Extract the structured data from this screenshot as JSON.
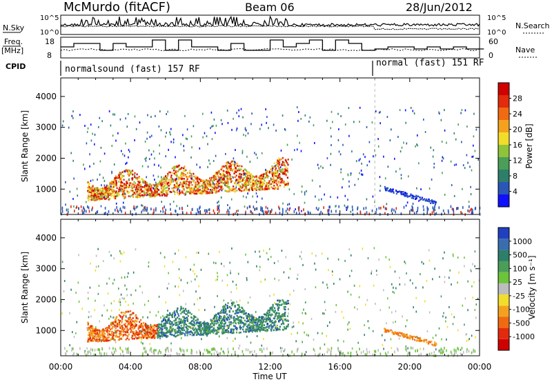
{
  "header": {
    "station": "McMurdo (fitACF)",
    "beam": "Beam 06",
    "date": "28/Jun/2012"
  },
  "panels": {
    "noise": {
      "left_label": "N.Sky",
      "right_label": "N.Search",
      "tick_top": "10^5",
      "tick_bottom": "10^0"
    },
    "freq": {
      "left_label_1": "Freq.",
      "left_label_2": "[MHz]",
      "left_ticks": [
        "18",
        "8"
      ],
      "right_label": "Nave",
      "right_ticks": [
        "60",
        "0"
      ]
    },
    "cpid": {
      "label": "CPID",
      "modes": [
        "normalsound (fast) 157 RF",
        "normal (fast) 151 RF"
      ]
    }
  },
  "chart_data": [
    {
      "type": "heatmap",
      "title": "",
      "xlabel": "Time UT",
      "ylabel": "Slant Range [km]",
      "xticks": [
        "00:00",
        "04:00",
        "08:00",
        "12:00",
        "16:00",
        "20:00",
        "00:00"
      ],
      "yticks": [
        1000,
        2000,
        3000,
        4000
      ],
      "xlim": [
        "00:00",
        "24:00"
      ],
      "ylim": [
        180,
        4600
      ],
      "colorbar": {
        "label": "Power [dB]",
        "ticks": [
          "4",
          "8",
          "12",
          "16",
          "20",
          "24",
          "28"
        ],
        "range": [
          0,
          30
        ],
        "colors": [
          "#1010ff",
          "#2a56b8",
          "#2d7f6a",
          "#4a9e57",
          "#8fc33a",
          "#f2dd2a",
          "#f4a21e",
          "#f06a12",
          "#e22a0c",
          "#d00000"
        ]
      },
      "echo_regions": [
        {
          "start_hr": 1.5,
          "end_hr": 13.0,
          "range_low_km": 600,
          "range_high_km": 2000,
          "dominant": "high power 20-30 dB"
        },
        {
          "start_hr": 18.5,
          "end_hr": 21.5,
          "range_low_km": 500,
          "range_high_km": 1050,
          "dominant": "low power 4-8 dB"
        }
      ]
    },
    {
      "type": "heatmap",
      "title": "",
      "xlabel": "Time UT",
      "ylabel": "Slant Range [km]",
      "xticks": [
        "00:00",
        "04:00",
        "08:00",
        "12:00",
        "16:00",
        "20:00",
        "00:00"
      ],
      "yticks": [
        1000,
        2000,
        3000,
        4000
      ],
      "xlim": [
        "00:00",
        "24:00"
      ],
      "ylim": [
        180,
        4600
      ],
      "colorbar": {
        "label": "Velocity [m s^-1]",
        "ticks": [
          "1000",
          "500",
          "100",
          "25",
          "-25",
          "-100",
          "-500",
          "-1000"
        ],
        "colors": [
          "#2040c0",
          "#3a6db0",
          "#2d7f6a",
          "#4a9e57",
          "#6cc43a",
          "#bdbdbd",
          "#f2dd2a",
          "#f4a21e",
          "#f06a12",
          "#e22a0c",
          "#d00000"
        ]
      },
      "echo_regions": [
        {
          "start_hr": 1.5,
          "end_hr": 5.5,
          "range_low_km": 600,
          "range_high_km": 1600,
          "dominant": "negative velocity -100 to -500"
        },
        {
          "start_hr": 5.5,
          "end_hr": 13.0,
          "range_low_km": 600,
          "range_high_km": 2000,
          "dominant": "positive velocity 100-500"
        },
        {
          "start_hr": 18.5,
          "end_hr": 21.5,
          "range_low_km": 500,
          "range_high_km": 1050,
          "dominant": "negative velocity -100 to -500"
        }
      ]
    }
  ],
  "bottom_axis_label": "Time UT"
}
